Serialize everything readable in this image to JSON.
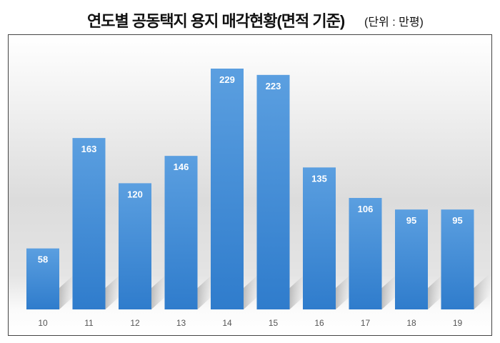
{
  "chart_data": {
    "type": "bar",
    "title": "연도별 공동택지 용지 매각현황(면적 기준)",
    "unit_label": "(단위 : 만평)",
    "categories": [
      "10",
      "11",
      "12",
      "13",
      "14",
      "15",
      "16",
      "17",
      "18",
      "19"
    ],
    "values": [
      58,
      163,
      120,
      146,
      229,
      223,
      135,
      106,
      95,
      95
    ],
    "xlabel": "",
    "ylabel": "",
    "ylim": [
      0,
      229
    ],
    "grid": false,
    "bar_color": "#3a86d0",
    "data_labels": true
  }
}
